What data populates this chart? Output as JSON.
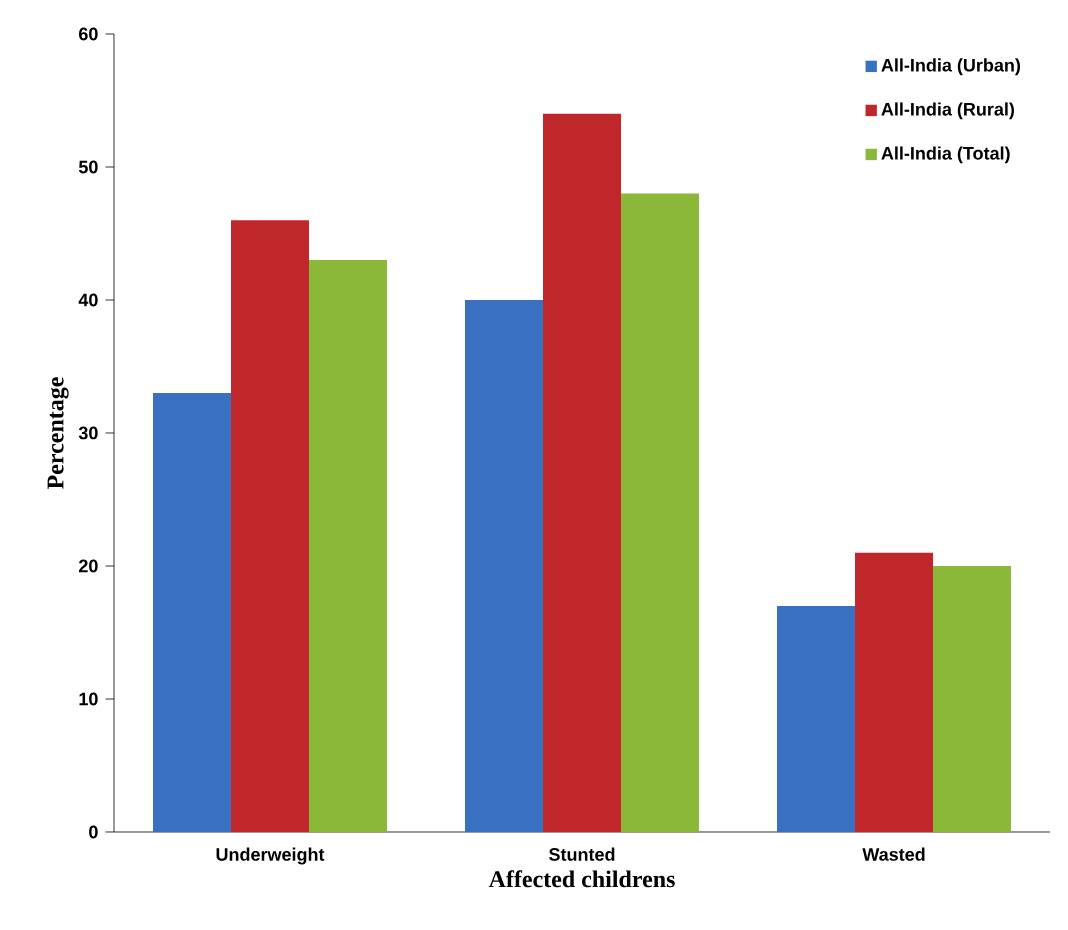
{
  "chart_data": {
    "type": "bar",
    "xlabel": "Affected childrens",
    "ylabel": "Percentage",
    "categories": [
      "Underweight",
      "Stunted",
      "Wasted"
    ],
    "series": [
      {
        "name": "All-India (Urban)",
        "color": "#3a70c0",
        "values": [
          33,
          40,
          17
        ]
      },
      {
        "name": "All-India (Rural)",
        "color": "#c0272a",
        "values": [
          46,
          54,
          21
        ]
      },
      {
        "name": "All-India (Total)",
        "color": "#8cb83a",
        "values": [
          43,
          48,
          20
        ]
      }
    ],
    "ylim": [
      0,
      60
    ],
    "yticks": [
      0,
      10,
      20,
      30,
      40,
      50,
      60
    ],
    "legend": "top right",
    "grid": false
  }
}
